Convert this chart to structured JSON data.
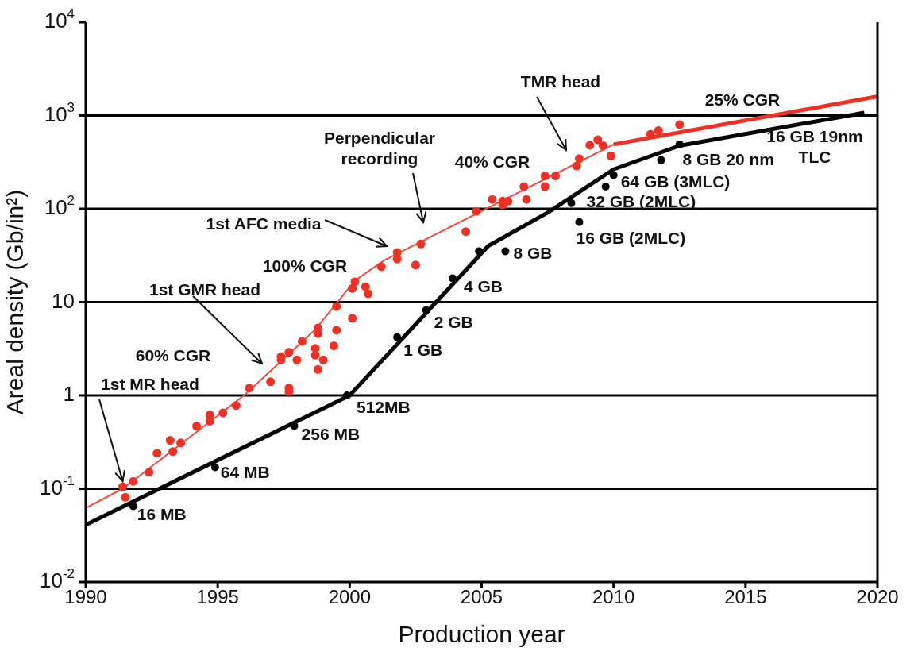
{
  "chart_data": {
    "type": "scatter",
    "xlabel": "Production year",
    "ylabel": "Areal density (Gb/in²)",
    "xlim": [
      1990,
      2020
    ],
    "xticks": [
      1990,
      1995,
      2000,
      2005,
      2010,
      2015,
      2020
    ],
    "ylim": [
      0.01,
      10000
    ],
    "yticks": [
      {
        "value": 0.01,
        "label": "10$^{-2}$"
      },
      {
        "value": 0.1,
        "label": "10$^{-1}$"
      },
      1,
      10,
      {
        "value": 100,
        "label": "10$^{2}$"
      },
      {
        "value": 1000,
        "label": "10$^{3}$"
      },
      {
        "value": 10000,
        "label": "10$^{4}$"
      }
    ],
    "log": true,
    "grid": "y",
    "series": [
      {
        "type": "line",
        "color": "#f04a3a",
        "x": [
          1990,
          1991.4,
          1996,
          1998.7,
          2000.2,
          2001.3,
          2010
        ],
        "values": [
          0.062,
          0.1,
          1,
          5.1,
          17,
          28,
          490
        ]
      },
      {
        "type": "line",
        "color": "#ee3124",
        "x": [
          2010,
          2020
        ],
        "values": [
          490,
          1600
        ]
      },
      {
        "color": "#ee3124",
        "marker": "circle",
        "x": [
          1991.5,
          1991.4,
          1991.8,
          1992.4,
          1992.7,
          1993.2,
          1993.3,
          1993.6,
          1994.2,
          1994.7,
          1994.7,
          1995.2,
          1995.7,
          1996.2,
          1997.0,
          1997.7,
          1997.7,
          1997.4,
          1997.4,
          1997.7,
          1998.0,
          1998.2,
          1998.8,
          1998.8,
          1998.7,
          1998.7,
          1998.8,
          1999.0,
          1999.4,
          1999.5,
          1999.5,
          2000.1,
          2000.1,
          2000.2,
          2000.6,
          2000.7,
          2001.2,
          2001.8,
          2001.8,
          2002.5,
          2002.7,
          2004.4,
          2004.8,
          2005.4,
          2005.8,
          2005.8,
          2006.0,
          2006.7,
          2006.6,
          2007.4,
          2007.4,
          2007.8,
          2008.6,
          2008.7,
          2009.1,
          2009.4,
          2009.6,
          2009.9,
          2011.4,
          2011.7,
          2012.5
        ],
        "values": [
          0.081,
          0.105,
          0.12,
          0.15,
          0.24,
          0.33,
          0.25,
          0.31,
          0.47,
          0.62,
          0.53,
          0.65,
          0.78,
          1.2,
          1.4,
          1.2,
          1.1,
          2.4,
          2.6,
          2.9,
          2.4,
          3.8,
          5.3,
          4.6,
          3.2,
          2.7,
          1.9,
          2.4,
          3.4,
          5.0,
          9,
          6.7,
          14,
          16.5,
          14.6,
          12.3,
          24,
          34,
          29,
          25,
          42,
          57,
          94,
          126,
          121,
          110,
          121,
          126,
          173,
          173,
          225,
          225,
          288,
          345,
          480,
          550,
          475,
          370,
          630,
          690,
          800
        ]
      },
      {
        "type": "line",
        "color": "#000000",
        "x": [
          1990,
          2000,
          2005.25,
          2007.5,
          2010,
          2012.5,
          2019.5
        ],
        "values": [
          0.041,
          1,
          40,
          91,
          265,
          475,
          1070
        ]
      },
      {
        "color": "#000000",
        "marker": "circle",
        "x": [
          1991.8,
          1994.9,
          1997.9,
          1999.9,
          2001.8,
          2002.9,
          2003.9,
          2004.9,
          2005.9,
          2008.4,
          2008.7,
          2009.7,
          2010.0,
          2011.8,
          2012.5
        ],
        "values": [
          0.065,
          0.17,
          0.47,
          1.0,
          4.2,
          8.2,
          18,
          35,
          35,
          115,
          72,
          173,
          230,
          333,
          490
        ]
      }
    ],
    "annotations": [
      {
        "text": "1st MR head",
        "x": 1991.4,
        "y": 0.105
      },
      "60% CGR",
      "1st GMR head",
      "100% CGR",
      "1st AFC media",
      "Perpendicular\nrecording",
      "40% CGR",
      "TMR head",
      "25% CGR",
      "16 GB 19nm\nTLC",
      {
        "text": "16 MB",
        "x": 1991.8,
        "y": 0.065
      },
      {
        "text": "64 MB",
        "x": 1994.9,
        "y": 0.17
      },
      {
        "text": "256 MB",
        "x": 1997.9,
        "y": 0.47
      },
      {
        "text": "512MB",
        "x": 1999.9,
        "y": 1.0
      },
      {
        "text": "1 GB",
        "x": 2001.8,
        "y": 4.2
      },
      {
        "text": "2 GB",
        "x": 2002.9,
        "y": 8.2
      },
      {
        "text": "4 GB",
        "x": 2003.9,
        "y": 18
      },
      {
        "text": "8 GB",
        "x": 2005.9,
        "y": 35
      },
      {
        "text": "32 GB (2MLC)",
        "x": 2008.4,
        "y": 115
      },
      {
        "text": "16 GB (2MLC)",
        "x": 2008.7,
        "y": 72
      },
      {
        "text": "64 GB (3MLC)",
        "x": 2009.7,
        "y": 173
      },
      {
        "text": "8 GB 20 nm",
        "x": 2011.8,
        "y": 333
      }
    ]
  }
}
